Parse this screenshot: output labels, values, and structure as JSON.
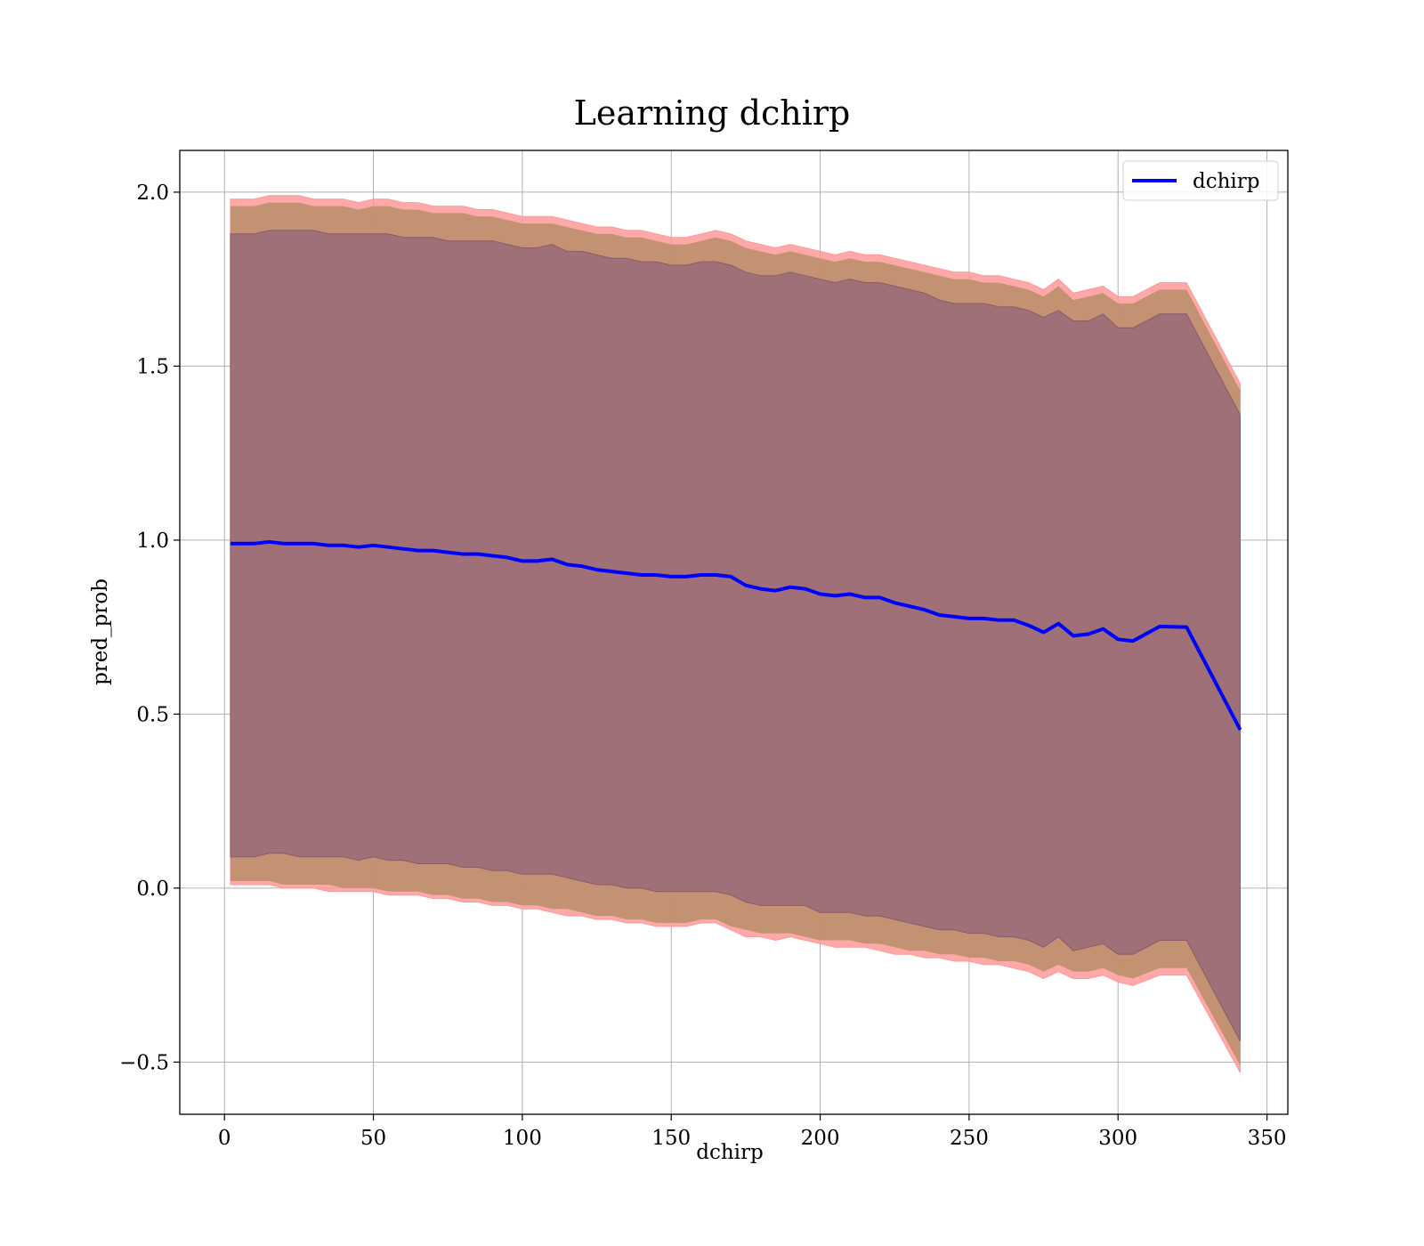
{
  "chart_data": {
    "type": "line",
    "title": "Learning dchirp",
    "xlabel": "dchirp",
    "ylabel": "pred_prob",
    "xlim": [
      -15,
      357
    ],
    "ylim": [
      -0.65,
      2.12
    ],
    "xticks": [
      0,
      50,
      100,
      150,
      200,
      250,
      300,
      350
    ],
    "yticks": [
      -0.5,
      0.0,
      0.5,
      1.0,
      1.5,
      2.0
    ],
    "xtick_labels": [
      "0",
      "50",
      "100",
      "150",
      "200",
      "250",
      "300",
      "350"
    ],
    "ytick_labels": [
      "−0.5",
      "0.0",
      "0.5",
      "1.0",
      "1.5",
      "2.0"
    ],
    "grid": true,
    "legend": {
      "position": "top-right",
      "entries": [
        "dchirp"
      ]
    },
    "colors": {
      "line": "#0000ff",
      "outer_band": "#ff9999",
      "middle_band": "#c09070",
      "inner_band": "#a07078"
    },
    "series": [
      {
        "name": "dchirp",
        "x": [
          2,
          10,
          15,
          20,
          25,
          30,
          35,
          40,
          45,
          50,
          55,
          60,
          65,
          70,
          75,
          80,
          85,
          90,
          95,
          100,
          105,
          110,
          115,
          120,
          125,
          130,
          135,
          140,
          145,
          150,
          155,
          160,
          165,
          170,
          175,
          180,
          185,
          190,
          195,
          200,
          205,
          210,
          215,
          220,
          225,
          230,
          235,
          240,
          245,
          250,
          255,
          260,
          265,
          270,
          275,
          280,
          285,
          290,
          295,
          300,
          305,
          314,
          323,
          341
        ],
        "y": [
          0.99,
          0.99,
          0.995,
          0.99,
          0.99,
          0.99,
          0.985,
          0.985,
          0.98,
          0.985,
          0.98,
          0.975,
          0.97,
          0.97,
          0.965,
          0.96,
          0.96,
          0.955,
          0.95,
          0.94,
          0.94,
          0.945,
          0.93,
          0.925,
          0.915,
          0.91,
          0.905,
          0.9,
          0.9,
          0.895,
          0.895,
          0.9,
          0.9,
          0.895,
          0.87,
          0.86,
          0.855,
          0.865,
          0.86,
          0.845,
          0.84,
          0.845,
          0.835,
          0.835,
          0.82,
          0.81,
          0.8,
          0.785,
          0.78,
          0.775,
          0.775,
          0.77,
          0.77,
          0.755,
          0.735,
          0.76,
          0.725,
          0.73,
          0.745,
          0.715,
          0.71,
          0.752,
          0.75,
          0.455
        ]
      }
    ],
    "bands": {
      "outer_lower": [
        0.01,
        0.01,
        0.01,
        0.0,
        0.0,
        0.0,
        -0.01,
        -0.01,
        -0.01,
        -0.01,
        -0.02,
        -0.02,
        -0.02,
        -0.03,
        -0.03,
        -0.04,
        -0.04,
        -0.05,
        -0.05,
        -0.06,
        -0.06,
        -0.07,
        -0.08,
        -0.08,
        -0.09,
        -0.09,
        -0.1,
        -0.1,
        -0.11,
        -0.11,
        -0.11,
        -0.1,
        -0.1,
        -0.12,
        -0.14,
        -0.14,
        -0.15,
        -0.14,
        -0.15,
        -0.16,
        -0.17,
        -0.17,
        -0.17,
        -0.18,
        -0.19,
        -0.19,
        -0.2,
        -0.2,
        -0.21,
        -0.21,
        -0.22,
        -0.22,
        -0.23,
        -0.24,
        -0.26,
        -0.24,
        -0.26,
        -0.26,
        -0.25,
        -0.27,
        -0.28,
        -0.25,
        -0.25,
        -0.53
      ],
      "outer_upper": [
        1.98,
        1.98,
        1.99,
        1.99,
        1.99,
        1.98,
        1.98,
        1.98,
        1.97,
        1.98,
        1.98,
        1.97,
        1.97,
        1.96,
        1.96,
        1.96,
        1.95,
        1.95,
        1.94,
        1.93,
        1.93,
        1.93,
        1.92,
        1.91,
        1.9,
        1.9,
        1.89,
        1.89,
        1.88,
        1.87,
        1.87,
        1.88,
        1.89,
        1.88,
        1.86,
        1.85,
        1.84,
        1.85,
        1.84,
        1.83,
        1.82,
        1.83,
        1.82,
        1.82,
        1.81,
        1.8,
        1.79,
        1.78,
        1.77,
        1.77,
        1.76,
        1.76,
        1.75,
        1.74,
        1.72,
        1.75,
        1.71,
        1.72,
        1.73,
        1.7,
        1.7,
        1.74,
        1.74,
        1.45
      ],
      "middle_lower": [
        0.02,
        0.02,
        0.02,
        0.01,
        0.01,
        0.01,
        0.01,
        0.0,
        0.0,
        0.0,
        -0.01,
        -0.01,
        -0.01,
        -0.02,
        -0.02,
        -0.03,
        -0.03,
        -0.04,
        -0.04,
        -0.05,
        -0.05,
        -0.06,
        -0.06,
        -0.07,
        -0.08,
        -0.08,
        -0.09,
        -0.09,
        -0.1,
        -0.1,
        -0.1,
        -0.09,
        -0.09,
        -0.11,
        -0.12,
        -0.13,
        -0.13,
        -0.13,
        -0.14,
        -0.15,
        -0.15,
        -0.15,
        -0.16,
        -0.16,
        -0.17,
        -0.18,
        -0.18,
        -0.19,
        -0.19,
        -0.2,
        -0.2,
        -0.21,
        -0.21,
        -0.22,
        -0.24,
        -0.22,
        -0.24,
        -0.24,
        -0.23,
        -0.25,
        -0.26,
        -0.23,
        -0.23,
        -0.51
      ],
      "middle_upper": [
        1.96,
        1.96,
        1.97,
        1.97,
        1.97,
        1.96,
        1.96,
        1.96,
        1.95,
        1.96,
        1.96,
        1.95,
        1.95,
        1.94,
        1.94,
        1.94,
        1.93,
        1.93,
        1.92,
        1.91,
        1.91,
        1.91,
        1.9,
        1.89,
        1.88,
        1.88,
        1.87,
        1.87,
        1.86,
        1.85,
        1.85,
        1.86,
        1.87,
        1.86,
        1.84,
        1.83,
        1.82,
        1.83,
        1.82,
        1.81,
        1.8,
        1.81,
        1.8,
        1.8,
        1.79,
        1.78,
        1.77,
        1.76,
        1.75,
        1.75,
        1.74,
        1.74,
        1.73,
        1.72,
        1.7,
        1.73,
        1.69,
        1.7,
        1.71,
        1.68,
        1.68,
        1.72,
        1.72,
        1.43
      ],
      "inner_lower": [
        0.09,
        0.09,
        0.1,
        0.1,
        0.09,
        0.09,
        0.09,
        0.09,
        0.08,
        0.09,
        0.08,
        0.08,
        0.07,
        0.07,
        0.07,
        0.06,
        0.06,
        0.05,
        0.05,
        0.04,
        0.04,
        0.04,
        0.03,
        0.02,
        0.01,
        0.01,
        0.0,
        0.0,
        -0.01,
        -0.01,
        -0.01,
        -0.01,
        -0.01,
        -0.02,
        -0.04,
        -0.05,
        -0.05,
        -0.05,
        -0.05,
        -0.07,
        -0.07,
        -0.07,
        -0.08,
        -0.08,
        -0.09,
        -0.1,
        -0.11,
        -0.12,
        -0.12,
        -0.13,
        -0.13,
        -0.14,
        -0.14,
        -0.15,
        -0.17,
        -0.14,
        -0.18,
        -0.17,
        -0.16,
        -0.19,
        -0.19,
        -0.15,
        -0.15,
        -0.44
      ],
      "inner_upper": [
        1.88,
        1.88,
        1.89,
        1.89,
        1.89,
        1.89,
        1.88,
        1.88,
        1.88,
        1.88,
        1.88,
        1.87,
        1.87,
        1.87,
        1.86,
        1.86,
        1.86,
        1.86,
        1.85,
        1.84,
        1.84,
        1.85,
        1.83,
        1.83,
        1.82,
        1.81,
        1.81,
        1.8,
        1.8,
        1.79,
        1.79,
        1.8,
        1.8,
        1.79,
        1.77,
        1.76,
        1.76,
        1.77,
        1.76,
        1.75,
        1.74,
        1.75,
        1.74,
        1.74,
        1.73,
        1.72,
        1.71,
        1.69,
        1.68,
        1.68,
        1.68,
        1.67,
        1.67,
        1.66,
        1.64,
        1.66,
        1.63,
        1.63,
        1.65,
        1.61,
        1.61,
        1.65,
        1.65,
        1.36
      ]
    }
  }
}
